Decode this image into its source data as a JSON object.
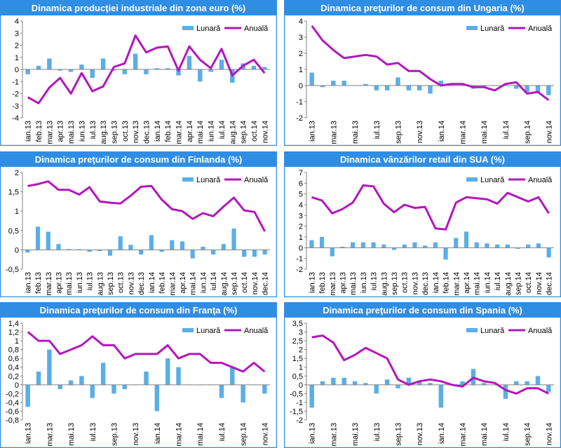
{
  "colors": {
    "monthly": "#5aaee8",
    "annual": "#b316bd",
    "title_bg": "#2f8de4",
    "border": "#2f8de4",
    "axis": "#808080"
  },
  "chart_data": [
    {
      "type": "bar+line",
      "title": "Dinamica producţiei industriale din zona euro (%)",
      "legend": {
        "monthly": "Lunară",
        "annual": "Anuală",
        "position": "top-right"
      },
      "ylim": [
        -4,
        4
      ],
      "yticks": [
        "-4",
        "-3",
        "-2",
        "-1",
        "0",
        "1",
        "2",
        "3",
        "4"
      ],
      "xlabels": [
        "ian.13",
        "feb.13",
        "mar.13",
        "apr.13",
        "mai.13",
        "iun.13",
        "iul.13",
        "aug.13",
        "sep.13",
        "oct.13",
        "nov.13",
        "dec.13",
        "ian.14",
        "feb.14",
        "mar.14",
        "apr.14",
        "mai.14",
        "iun.14",
        "iul.14",
        "aug.14",
        "sep.14",
        "oct.14",
        "nov.14"
      ],
      "series": [
        {
          "name": "Lunară",
          "values": [
            -0.4,
            0.3,
            0.9,
            -0.1,
            -0.2,
            0.4,
            -0.7,
            0.9,
            -0.1,
            -0.4,
            1.3,
            -0.4,
            0.1,
            0.1,
            -0.5,
            1.1,
            -1.0,
            -0.2,
            0.8,
            -1.1,
            0.5,
            0.3,
            0.2
          ]
        },
        {
          "name": "Anuală",
          "values": [
            -2.3,
            -2.8,
            -1.5,
            -0.7,
            -2.0,
            -0.3,
            -1.8,
            -1.4,
            0.2,
            0.5,
            2.8,
            1.4,
            1.8,
            1.9,
            -0.1,
            1.9,
            0.8,
            0.1,
            1.7,
            -0.5,
            0.3,
            0.8,
            -0.3
          ]
        }
      ]
    },
    {
      "type": "bar+line",
      "title": "Dinamica preţurilor de consum din Ungaria (%)",
      "legend": {
        "monthly": "Lunară",
        "annual": "Anuală",
        "position": "top-right"
      },
      "ylim": [
        -2,
        4
      ],
      "yticks": [
        "-2",
        "-1",
        "0",
        "1",
        "2",
        "3",
        "4"
      ],
      "xlabels": [
        "ian.13",
        "",
        "mar.13",
        "",
        "mai.13",
        "",
        "iul.13",
        "",
        "sep.13",
        "",
        "nov.13",
        "",
        "ian.14",
        "",
        "mar.14",
        "",
        "mai.14",
        "",
        "iul.14",
        "",
        "sep.14",
        "",
        "nov.14"
      ],
      "series": [
        {
          "name": "Lunară",
          "values": [
            0.8,
            -0.1,
            0.3,
            0.3,
            0.0,
            0.1,
            -0.3,
            -0.3,
            0.5,
            -0.3,
            -0.3,
            -0.5,
            0.3,
            0.1,
            0.0,
            -0.2,
            -0.1,
            0.0,
            0.1,
            -0.2,
            -0.4,
            -0.4,
            -0.6
          ]
        },
        {
          "name": "Anuală",
          "values": [
            3.7,
            2.8,
            2.2,
            1.7,
            1.8,
            1.9,
            1.8,
            1.3,
            1.4,
            0.9,
            0.9,
            0.4,
            0.0,
            0.1,
            0.1,
            -0.1,
            -0.1,
            -0.3,
            0.1,
            0.2,
            -0.5,
            -0.4,
            -0.9
          ]
        }
      ]
    },
    {
      "type": "bar+line",
      "title": "Dinamica preţurilor de consum din Finlanda (%)",
      "legend": {
        "monthly": "Lunară",
        "annual": "Anuală",
        "position": "top-right"
      },
      "ylim": [
        -0.5,
        2
      ],
      "yticks": [
        "-0,5",
        "0",
        "0,5",
        "1",
        "1,5",
        "2"
      ],
      "xlabels": [
        "ian.13",
        "feb.13",
        "mar.13",
        "apr.13",
        "mai.13",
        "iun.13",
        "iul.13",
        "aug.13",
        "sep.13",
        "oct.13",
        "nov.13",
        "dec.13",
        "ian.14",
        "feb.14",
        "mar.14",
        "apr.14",
        "mai.14",
        "iun.14",
        "iul.14",
        "aug.14",
        "sep.14",
        "oct.14",
        "nov.14",
        "dec.14"
      ],
      "series": [
        {
          "name": "Lunară",
          "values": [
            -0.07,
            0.6,
            0.47,
            0.15,
            0.02,
            0.02,
            -0.05,
            -0.03,
            -0.15,
            0.35,
            0.13,
            -0.12,
            0.38,
            -0.05,
            0.25,
            0.22,
            -0.22,
            0.08,
            -0.12,
            0.15,
            0.55,
            -0.18,
            -0.18,
            -0.12
          ]
        },
        {
          "name": "Anuală",
          "values": [
            1.65,
            1.7,
            1.77,
            1.55,
            1.55,
            1.43,
            1.62,
            1.25,
            1.22,
            1.2,
            1.4,
            1.63,
            1.65,
            1.3,
            1.05,
            1.0,
            0.8,
            0.95,
            0.87,
            1.12,
            1.35,
            1.02,
            0.98,
            0.48
          ]
        }
      ]
    },
    {
      "type": "bar+line",
      "title": "Dinamica vânzărilor retail din SUA (%)",
      "legend": {
        "monthly": "Lunară",
        "annual": "Anuală",
        "position": "top-right"
      },
      "ylim": [
        -2,
        7
      ],
      "yticks": [
        "-2",
        "-1",
        "0",
        "1",
        "2",
        "3",
        "4",
        "5",
        "6",
        "7"
      ],
      "xlabels": [
        "ian.13",
        "feb.13",
        "mar.13",
        "apr.13",
        "mai.13",
        "iun.13",
        "iul.13",
        "aug.13",
        "sep.13",
        "oct.13",
        "nov.13",
        "dec.13",
        "ian.14",
        "feb.14",
        "mar.14",
        "apr.14",
        "mai.14",
        "iun.14",
        "iul.14",
        "aug.14",
        "sep.14",
        "oct.14",
        "nov.14",
        "dec.14"
      ],
      "series": [
        {
          "name": "Lunară",
          "values": [
            0.7,
            1.0,
            -0.8,
            0.1,
            0.5,
            0.5,
            0.5,
            0.3,
            -0.2,
            0.3,
            0.5,
            0.2,
            0.5,
            -1.1,
            0.9,
            1.5,
            0.5,
            0.4,
            0.3,
            0.3,
            -0.1,
            0.3,
            0.4,
            -0.9
          ]
        },
        {
          "name": "Anuală",
          "values": [
            4.7,
            4.4,
            3.2,
            3.6,
            4.2,
            5.8,
            5.7,
            4.1,
            3.3,
            4.0,
            3.7,
            3.8,
            1.8,
            1.7,
            4.2,
            4.7,
            4.6,
            4.5,
            4.1,
            5.1,
            4.7,
            4.3,
            4.7,
            3.2
          ]
        }
      ]
    },
    {
      "type": "bar+line",
      "title": "Dinamica preţurilor de consum din Franţa (%)",
      "legend": {
        "monthly": "Lunară",
        "annual": "Anuală",
        "position": "top-right"
      },
      "ylim": [
        -0.8,
        1.4
      ],
      "yticks": [
        "-0,8",
        "-0,6",
        "-0,4",
        "-0,2",
        "0",
        "0,2",
        "0,4",
        "0,6",
        "0,8",
        "1",
        "1,2",
        "1,4"
      ],
      "xlabels": [
        "ian.13",
        "",
        "mar.13",
        "",
        "mai.13",
        "",
        "iul.13",
        "",
        "sep.13",
        "",
        "nov.13",
        "",
        "ian.14",
        "",
        "mar.14",
        "",
        "mai.14",
        "",
        "iul.14",
        "",
        "sep.14",
        "",
        "nov.14"
      ],
      "series": [
        {
          "name": "Lunară",
          "values": [
            -0.5,
            0.3,
            0.8,
            -0.1,
            0.1,
            0.2,
            -0.3,
            0.5,
            -0.2,
            -0.1,
            0.0,
            0.3,
            -0.6,
            0.6,
            0.4,
            0.0,
            0.0,
            0.0,
            -0.3,
            0.4,
            -0.4,
            0.0,
            -0.2
          ]
        },
        {
          "name": "Anuală",
          "values": [
            1.2,
            1.0,
            1.0,
            0.7,
            0.8,
            0.9,
            1.1,
            0.9,
            0.9,
            0.6,
            0.7,
            0.7,
            0.7,
            0.9,
            0.6,
            0.7,
            0.7,
            0.5,
            0.5,
            0.4,
            0.3,
            0.5,
            0.3
          ]
        }
      ]
    },
    {
      "type": "bar+line",
      "title": "Dinamica preţurilor de consum din Spania (%)",
      "legend": {
        "monthly": "Lunară",
        "annual": "Anuală",
        "position": "top-right"
      },
      "ylim": [
        -2,
        3.5
      ],
      "yticks": [
        "-2",
        "-1,5",
        "-1",
        "-0,5",
        "0",
        "0,5",
        "1",
        "1,5",
        "2",
        "2,5",
        "3",
        "3,5"
      ],
      "xlabels": [
        "ian.13",
        "",
        "mar.13",
        "",
        "mai.13",
        "",
        "iul.13",
        "",
        "sep.13",
        "",
        "nov.13",
        "",
        "ian.14",
        "",
        "mar.14",
        "",
        "mai.14",
        "",
        "iul.14",
        "",
        "sep.14",
        "",
        "nov.14"
      ],
      "series": [
        {
          "name": "Lunară",
          "values": [
            -1.3,
            0.2,
            0.4,
            0.4,
            0.2,
            0.1,
            -0.5,
            0.3,
            -0.2,
            0.4,
            0.2,
            0.1,
            -1.3,
            0.0,
            0.2,
            0.9,
            0.1,
            0.0,
            -0.8,
            0.2,
            0.2,
            0.5,
            -0.4
          ]
        },
        {
          "name": "Anuală",
          "values": [
            2.7,
            2.8,
            2.4,
            1.4,
            1.7,
            2.1,
            1.8,
            1.5,
            0.3,
            0.0,
            0.2,
            0.3,
            0.2,
            0.0,
            -0.1,
            0.4,
            0.2,
            0.1,
            -0.3,
            -0.5,
            -0.2,
            -0.2,
            -0.5
          ]
        }
      ]
    }
  ]
}
